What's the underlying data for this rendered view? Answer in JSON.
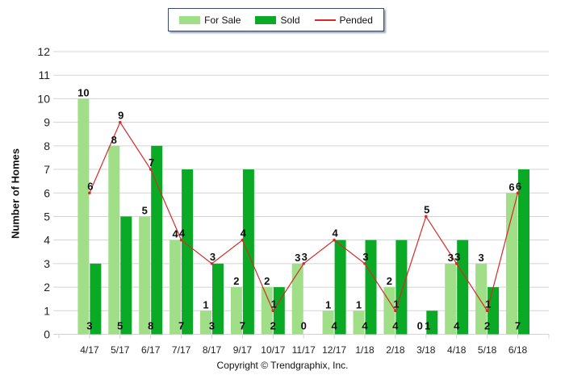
{
  "colors": {
    "for_sale": "#a0df88",
    "sold": "#0aaa26",
    "pended": "#d42a2a",
    "grid": "#d3d3d3",
    "legend_border": "#3b4a6b"
  },
  "legend": {
    "items": [
      {
        "label": "For Sale",
        "type": "bar",
        "color": "#a0df88"
      },
      {
        "label": "Sold",
        "type": "bar",
        "color": "#0aaa26"
      },
      {
        "label": "Pended",
        "type": "line",
        "color": "#d42a2a"
      }
    ]
  },
  "copyright": "Copyright © Trendgraphix, Inc.",
  "chart_data": {
    "type": "bar",
    "title": "",
    "xlabel": "",
    "ylabel": "Number of Homes",
    "ylim": [
      0,
      12
    ],
    "yticks": [
      0,
      1,
      2,
      3,
      4,
      5,
      6,
      7,
      8,
      9,
      10,
      11,
      12
    ],
    "grid": true,
    "legend_position": "top-center",
    "categories": [
      "4/17",
      "5/17",
      "6/17",
      "7/17",
      "8/17",
      "9/17",
      "10/17",
      "11/17",
      "12/17",
      "1/18",
      "2/18",
      "3/18",
      "4/18",
      "5/18",
      "6/18"
    ],
    "series": [
      {
        "name": "For Sale",
        "type": "bar",
        "values": [
          10,
          8,
          5,
          4,
          1,
          2,
          2,
          3,
          1,
          1,
          2,
          0,
          3,
          3,
          6
        ]
      },
      {
        "name": "Sold",
        "type": "bar",
        "values": [
          3,
          5,
          8,
          7,
          3,
          7,
          2,
          0,
          4,
          4,
          4,
          1,
          4,
          2,
          7
        ]
      },
      {
        "name": "Pended",
        "type": "line",
        "values": [
          6,
          9,
          7,
          4,
          3,
          4,
          1,
          3,
          4,
          3,
          1,
          5,
          3,
          1,
          6
        ]
      }
    ]
  }
}
